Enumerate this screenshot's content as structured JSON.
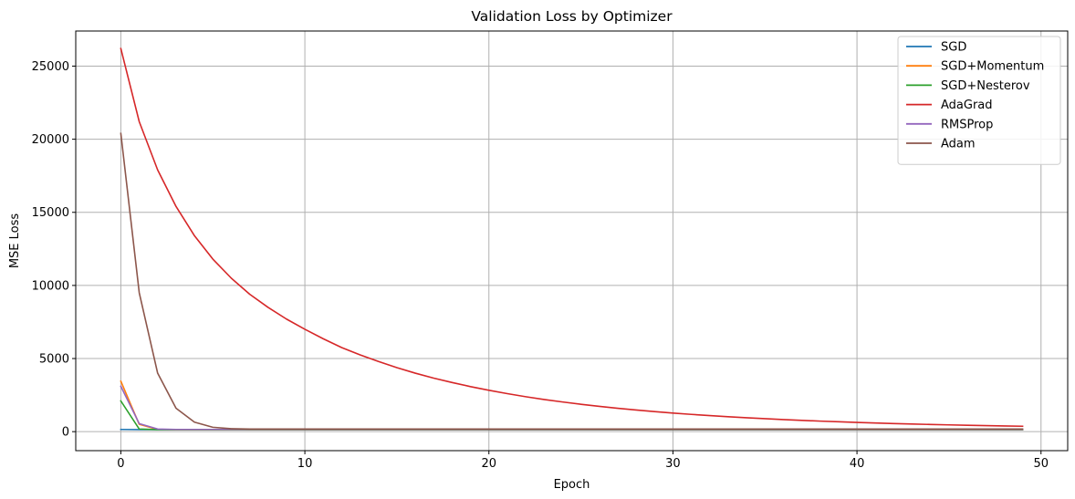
{
  "chart_data": {
    "type": "line",
    "title": "Validation Loss by Optimizer",
    "xlabel": "Epoch",
    "ylabel": "MSE Loss",
    "xlim": [
      -2.45,
      51.45
    ],
    "ylim": [
      -1300,
      27400
    ],
    "xticks": [
      0,
      10,
      20,
      30,
      40,
      50
    ],
    "yticks": [
      0,
      5000,
      10000,
      15000,
      20000,
      25000
    ],
    "grid": true,
    "legend_position": "top-right",
    "series": [
      {
        "name": "SGD",
        "color": "#1f77b4",
        "values": [
          150,
          140,
          140,
          140,
          140,
          140,
          140,
          140,
          140,
          140,
          140,
          140,
          140,
          140,
          140,
          140,
          140,
          140,
          140,
          140,
          140,
          140,
          140,
          140,
          140,
          140,
          140,
          140,
          140,
          140,
          140,
          140,
          140,
          140,
          140,
          140,
          140,
          140,
          140,
          140,
          140,
          140,
          140,
          140,
          140,
          140,
          140,
          140,
          140,
          140
        ]
      },
      {
        "name": "SGD+Momentum",
        "color": "#ff7f0e",
        "values": [
          3450,
          500,
          150,
          140,
          140,
          140,
          140,
          140,
          140,
          140,
          140,
          140,
          140,
          140,
          140,
          140,
          140,
          140,
          140,
          140,
          140,
          140,
          140,
          140,
          140,
          140,
          140,
          140,
          140,
          140,
          140,
          140,
          140,
          140,
          140,
          140,
          140,
          140,
          140,
          140,
          140,
          140,
          140,
          140,
          140,
          140,
          140,
          140,
          140,
          140
        ]
      },
      {
        "name": "SGD+Nesterov",
        "color": "#2ca02c",
        "values": [
          2100,
          180,
          140,
          140,
          140,
          140,
          140,
          140,
          140,
          140,
          140,
          140,
          140,
          140,
          140,
          140,
          140,
          140,
          140,
          140,
          140,
          140,
          140,
          140,
          140,
          140,
          140,
          140,
          140,
          140,
          140,
          140,
          140,
          140,
          140,
          140,
          140,
          140,
          140,
          140,
          140,
          140,
          140,
          140,
          140,
          140,
          140,
          140,
          140,
          140
        ]
      },
      {
        "name": "AdaGrad",
        "color": "#d62728",
        "values": [
          26200,
          21200,
          17900,
          15400,
          13400,
          11800,
          10500,
          9400,
          8500,
          7700,
          7000,
          6350,
          5750,
          5250,
          4800,
          4380,
          4000,
          3660,
          3360,
          3080,
          2830,
          2600,
          2390,
          2200,
          2030,
          1870,
          1730,
          1600,
          1480,
          1370,
          1270,
          1180,
          1100,
          1020,
          950,
          885,
          825,
          770,
          720,
          675,
          630,
          590,
          555,
          520,
          490,
          462,
          436,
          412,
          390,
          370
        ]
      },
      {
        "name": "RMSProp",
        "color": "#9467bd",
        "values": [
          3100,
          550,
          180,
          150,
          150,
          150,
          150,
          150,
          150,
          150,
          150,
          150,
          150,
          150,
          150,
          150,
          150,
          150,
          150,
          150,
          150,
          150,
          150,
          150,
          150,
          150,
          150,
          150,
          150,
          150,
          150,
          150,
          150,
          150,
          150,
          150,
          150,
          150,
          150,
          150,
          150,
          150,
          150,
          150,
          150,
          150,
          150,
          150,
          150,
          150
        ]
      },
      {
        "name": "Adam",
        "color": "#8c564b",
        "values": [
          20400,
          9500,
          4000,
          1600,
          650,
          300,
          200,
          180,
          180,
          180,
          180,
          180,
          180,
          180,
          180,
          180,
          180,
          180,
          180,
          180,
          180,
          180,
          180,
          180,
          180,
          180,
          180,
          180,
          180,
          180,
          180,
          180,
          180,
          180,
          180,
          180,
          180,
          180,
          180,
          180,
          180,
          180,
          180,
          180,
          180,
          180,
          180,
          180,
          180,
          180
        ]
      }
    ]
  }
}
